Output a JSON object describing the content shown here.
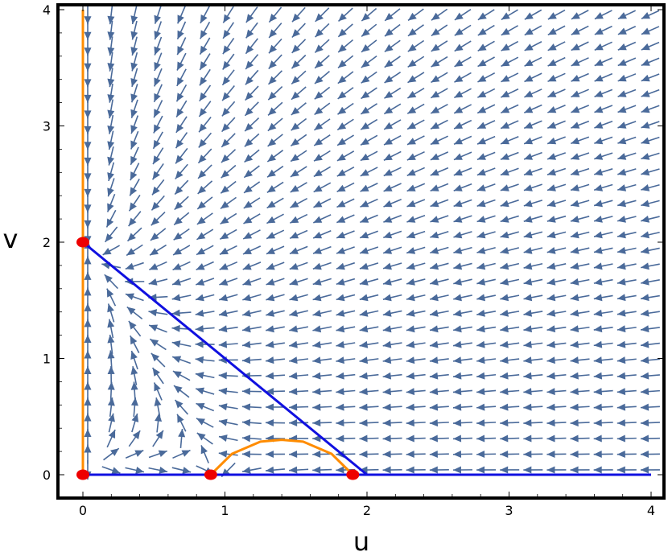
{
  "chart_data": {
    "type": "vector_field",
    "xlabel": "u",
    "ylabel": "v",
    "xlim": [
      -0.15,
      4.1
    ],
    "ylim": [
      -0.2,
      4.05
    ],
    "x_ticks": [
      0,
      1,
      2,
      3,
      4
    ],
    "y_ticks": [
      0,
      1,
      2,
      3,
      4
    ],
    "grid": false,
    "colors": {
      "arrow": "#4a6a9a",
      "nullcline_blue": "#1010e0",
      "nullcline_orange": "#ff8c00",
      "equilibrium": "#ee0000",
      "frame": "#000000"
    },
    "field_x": [
      0,
      0.165,
      0.33,
      0.495,
      0.66,
      0.825,
      0.99,
      1.155,
      1.32,
      1.485,
      1.65,
      1.815,
      1.98,
      2.145,
      2.31,
      2.475,
      2.64,
      2.805,
      2.97,
      3.135,
      3.3,
      3.465,
      3.63,
      3.795,
      3.96
    ],
    "field_y": [
      0,
      0.135,
      0.27,
      0.405,
      0.54,
      0.675,
      0.81,
      0.945,
      1.08,
      1.215,
      1.35,
      1.485,
      1.62,
      1.755,
      1.89,
      2.025,
      2.16,
      2.295,
      2.43,
      2.565,
      2.7,
      2.835,
      2.97,
      3.105,
      3.24,
      3.375,
      3.51,
      3.645,
      3.78,
      3.915
    ],
    "lines": [
      {
        "color": "blue",
        "points": [
          [
            0,
            2
          ],
          [
            2,
            0
          ]
        ]
      },
      {
        "color": "blue",
        "points": [
          [
            0,
            0
          ],
          [
            4,
            0
          ]
        ]
      },
      {
        "color": "orange",
        "points": [
          [
            0,
            0
          ],
          [
            0,
            4
          ]
        ]
      },
      {
        "color": "orange",
        "shape": "arc",
        "points": [
          [
            0.9,
            0
          ],
          [
            1.05,
            0.18
          ],
          [
            1.25,
            0.285
          ],
          [
            1.4,
            0.3
          ],
          [
            1.55,
            0.285
          ],
          [
            1.75,
            0.18
          ],
          [
            1.9,
            0
          ]
        ]
      }
    ],
    "equilibria": [
      [
        0,
        2
      ],
      [
        0,
        0
      ],
      [
        0.9,
        0
      ],
      [
        1.9,
        0
      ]
    ]
  }
}
